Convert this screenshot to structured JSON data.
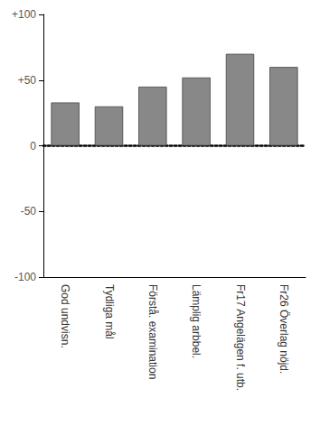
{
  "chart_data": {
    "type": "bar",
    "categories": [
      "God undvisn.",
      "Tydliga mål",
      "Förstå. examination",
      "Lämplig arbbel.",
      "Fr17 Angelägen f. utb.",
      "Fr26 Överlag nöjd."
    ],
    "values": [
      33,
      30,
      45,
      52,
      70,
      60
    ],
    "color": "#888888",
    "ylim": [
      -100,
      100
    ],
    "yticks": [
      -100,
      -50,
      0,
      {
        "value": 50,
        "label": "+50"
      },
      {
        "value": 100,
        "label": "+100"
      }
    ],
    "grid": false
  }
}
